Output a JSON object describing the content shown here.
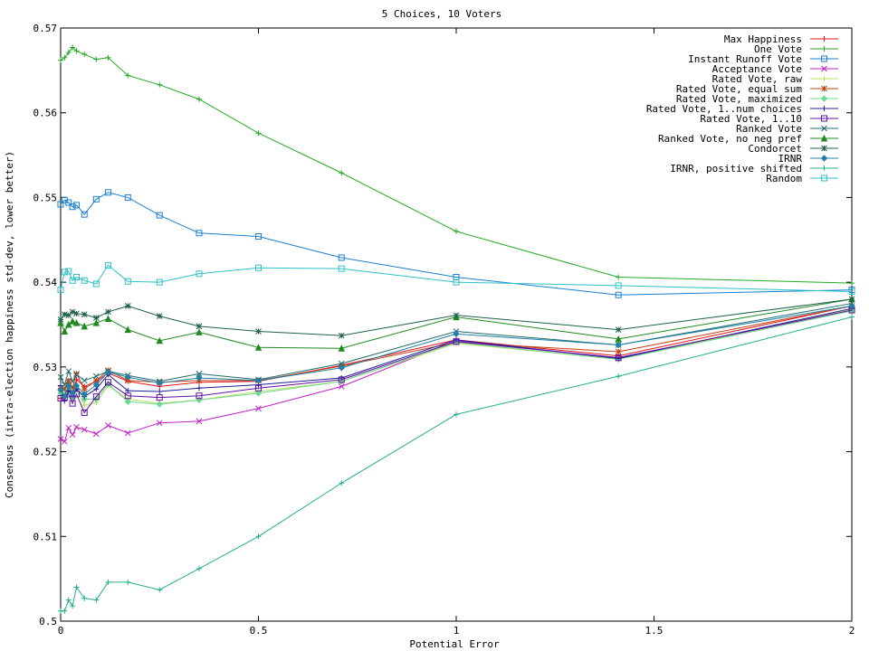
{
  "chart_data": {
    "type": "line",
    "title": "5 Choices, 10 Voters",
    "xlabel": "Potential Error",
    "ylabel": "Consensus (intra-election happiness std-dev, lower better)",
    "xlim": [
      0,
      2
    ],
    "ylim": [
      0.5,
      0.57
    ],
    "x_ticks": [
      "0",
      "0.5",
      "1",
      "1.5",
      "2"
    ],
    "y_ticks": [
      "0.5",
      "0.51",
      "0.52",
      "0.53",
      "0.54",
      "0.55",
      "0.56",
      "0.57"
    ],
    "grid": false,
    "legend_position": "top-right",
    "x": [
      0,
      0.01,
      0.02,
      0.03,
      0.04,
      0.06,
      0.09,
      0.12,
      0.17,
      0.25,
      0.35,
      0.5,
      0.71,
      1,
      1.41,
      2
    ],
    "series": [
      {
        "name": "Max Happiness",
        "color": "#e0141e",
        "marker": "plus",
        "values": [
          0.5263,
          0.5265,
          0.528,
          0.5268,
          0.5285,
          0.5277,
          0.5283,
          0.5293,
          0.5283,
          0.5277,
          0.5282,
          0.5283,
          0.5302,
          0.5332,
          0.5313,
          0.5372
        ]
      },
      {
        "name": "One Vote",
        "color": "#22aa22",
        "marker": "plus",
        "values": [
          0.5662,
          0.5665,
          0.5671,
          0.5677,
          0.5673,
          0.5669,
          0.5663,
          0.5665,
          0.5644,
          0.5633,
          0.5616,
          0.5576,
          0.5529,
          0.546,
          0.5406,
          0.5399
        ]
      },
      {
        "name": "Instant Runoff Vote",
        "color": "#1a7fd0",
        "marker": "square",
        "values": [
          0.5492,
          0.5497,
          0.5494,
          0.5489,
          0.5491,
          0.548,
          0.5498,
          0.5506,
          0.55,
          0.5479,
          0.5458,
          0.5454,
          0.5429,
          0.5406,
          0.5385,
          0.5391
        ]
      },
      {
        "name": "Acceptance Vote",
        "color": "#c020c8",
        "marker": "x",
        "values": [
          0.5215,
          0.5212,
          0.5228,
          0.522,
          0.5229,
          0.5226,
          0.5221,
          0.5231,
          0.5222,
          0.5234,
          0.5236,
          0.5251,
          0.5277,
          0.5331,
          0.531,
          0.5368
        ]
      },
      {
        "name": "Rated Vote, raw",
        "color": "#b8e060",
        "marker": "plus",
        "values": [
          0.5273,
          0.5269,
          0.5272,
          0.5265,
          0.5273,
          0.5255,
          0.5258,
          0.5278,
          0.5262,
          0.5257,
          0.5261,
          0.5271,
          0.5283,
          0.5328,
          0.5309,
          0.5368
        ]
      },
      {
        "name": "Rated Vote, equal sum",
        "color": "#c04010",
        "marker": "star",
        "values": [
          0.5275,
          0.5274,
          0.5284,
          0.5275,
          0.5292,
          0.5274,
          0.5284,
          0.5296,
          0.5284,
          0.5282,
          0.5284,
          0.5284,
          0.5301,
          0.5329,
          0.5318,
          0.5372
        ]
      },
      {
        "name": "Rated Vote, maximized",
        "color": "#6cd890",
        "marker": "diamond",
        "values": [
          0.5269,
          0.5266,
          0.5274,
          0.5263,
          0.5274,
          0.5262,
          0.5262,
          0.528,
          0.5259,
          0.5256,
          0.5261,
          0.5269,
          0.5283,
          0.5329,
          0.5309,
          0.5366
        ]
      },
      {
        "name": "Rated Vote, 1..num choices",
        "color": "#20209a",
        "marker": "plus",
        "values": [
          0.5278,
          0.526,
          0.5272,
          0.5266,
          0.5274,
          0.5265,
          0.5274,
          0.5291,
          0.5272,
          0.5271,
          0.5275,
          0.5279,
          0.5287,
          0.5332,
          0.531,
          0.5369
        ]
      },
      {
        "name": "Rated Vote, 1..10",
        "color": "#6010a0",
        "marker": "square",
        "values": [
          0.5263,
          0.5264,
          0.5268,
          0.5257,
          0.5268,
          0.5246,
          0.5265,
          0.5282,
          0.5266,
          0.5264,
          0.5266,
          0.5275,
          0.5285,
          0.533,
          0.5311,
          0.5367
        ]
      },
      {
        "name": "Ranked Vote",
        "color": "#206c70",
        "marker": "x",
        "values": [
          0.5288,
          0.5279,
          0.5295,
          0.5283,
          0.5291,
          0.5284,
          0.5289,
          0.5295,
          0.529,
          0.5283,
          0.5292,
          0.5285,
          0.5304,
          0.5342,
          0.5326,
          0.5375
        ]
      },
      {
        "name": "Ranked Vote, no neg pref",
        "color": "#208a20",
        "marker": "triangle",
        "values": [
          0.5352,
          0.5342,
          0.535,
          0.5354,
          0.5352,
          0.5348,
          0.5352,
          0.5357,
          0.5344,
          0.5331,
          0.5341,
          0.5323,
          0.5322,
          0.5359,
          0.5333,
          0.538
        ]
      },
      {
        "name": "Condorcet",
        "color": "#20604a",
        "marker": "star",
        "values": [
          0.5356,
          0.5362,
          0.5361,
          0.5365,
          0.5363,
          0.5362,
          0.5358,
          0.5365,
          0.5372,
          0.536,
          0.5348,
          0.5342,
          0.5337,
          0.5361,
          0.5344,
          0.538
        ]
      },
      {
        "name": "IRNR",
        "color": "#2080a8",
        "marker": "diamond",
        "values": [
          0.5273,
          0.5265,
          0.5277,
          0.5269,
          0.5278,
          0.5268,
          0.5279,
          0.5294,
          0.5288,
          0.5281,
          0.5287,
          0.5284,
          0.5299,
          0.5339,
          0.5326,
          0.5372
        ]
      },
      {
        "name": "IRNR, positive shifted",
        "color": "#20b088",
        "marker": "plus",
        "values": [
          0.5012,
          0.5012,
          0.5025,
          0.5018,
          0.504,
          0.5027,
          0.5025,
          0.5046,
          0.5046,
          0.5037,
          0.5062,
          0.51,
          0.5163,
          0.5244,
          0.5289,
          0.5359
        ]
      },
      {
        "name": "Random",
        "color": "#30c0c8",
        "marker": "square",
        "values": [
          0.5391,
          0.5412,
          0.5413,
          0.5402,
          0.5406,
          0.5402,
          0.5398,
          0.542,
          0.5401,
          0.54,
          0.541,
          0.5417,
          0.5416,
          0.54,
          0.5396,
          0.5389
        ]
      }
    ]
  }
}
